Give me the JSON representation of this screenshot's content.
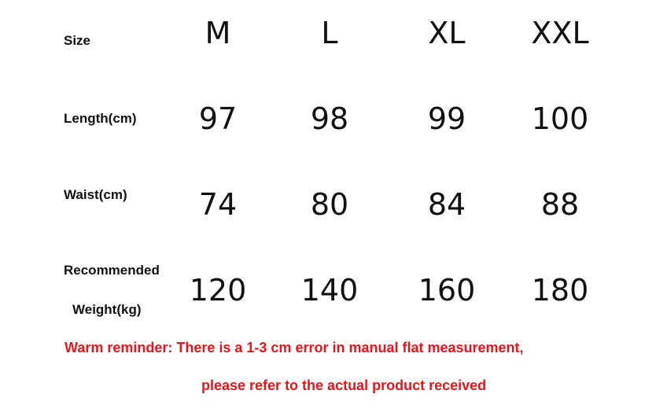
{
  "table": {
    "row_labels": [
      "Size",
      "Length(cm)",
      "Waist(cm)",
      "Recommended",
      "Weight(kg)"
    ],
    "sizes": [
      "M",
      "L",
      "XL",
      "XXL"
    ],
    "length": [
      "97",
      "98",
      "99",
      "100"
    ],
    "waist": [
      "74",
      "80",
      "84",
      "88"
    ],
    "weight": [
      "120",
      "140",
      "160",
      "180"
    ]
  },
  "reminder": {
    "line1": "Warm reminder: There is a 1-3 cm error in manual flat measurement,",
    "line2": "please refer to the actual product received",
    "color": "#e8141a"
  }
}
